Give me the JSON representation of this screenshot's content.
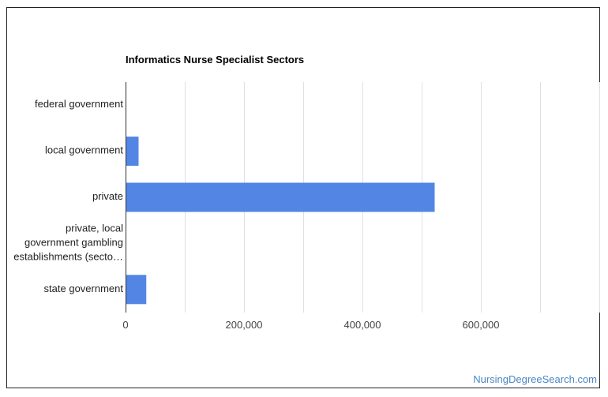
{
  "chart_data": {
    "type": "bar",
    "orientation": "horizontal",
    "title": "Informatics Nurse Specialist Sectors",
    "categories": [
      "federal government",
      "local government",
      "private",
      "private, local government gambling establishments (secto…",
      "state government"
    ],
    "category_lines": [
      [
        "federal government"
      ],
      [
        "local government"
      ],
      [
        "private"
      ],
      [
        "private, local",
        "government gambling",
        "establishments (secto…"
      ],
      [
        "state government"
      ]
    ],
    "values": [
      1100,
      22000,
      522000,
      400,
      35000
    ],
    "xlim": [
      0,
      800000
    ],
    "xticks": [
      0,
      200000,
      400000,
      600000
    ],
    "xtick_labels": [
      "0",
      "200,000",
      "400,000",
      "600,000"
    ],
    "xlabel": "",
    "ylabel": "",
    "grid": true,
    "legend": "none",
    "bar_color": "#5385e4"
  },
  "footer": {
    "source_link": "NursingDegreeSearch.com",
    "link_color": "#4a86c5"
  }
}
